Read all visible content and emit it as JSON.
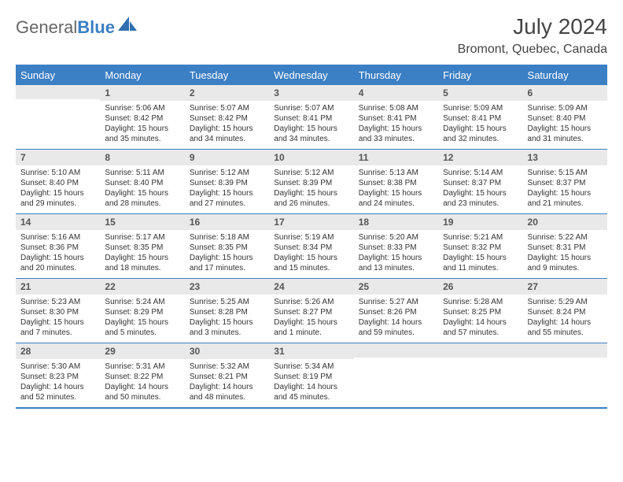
{
  "brand": {
    "first": "General",
    "second": "Blue"
  },
  "title": "July 2024",
  "location": "Bromont, Quebec, Canada",
  "colors": {
    "accent": "#3b7fc4",
    "header_bg": "#3b7fc4",
    "header_fg": "#ffffff",
    "daynum_bg": "#e9e9e9",
    "text": "#333333",
    "brand_grey": "#666666"
  },
  "days_of_week": [
    "Sunday",
    "Monday",
    "Tuesday",
    "Wednesday",
    "Thursday",
    "Friday",
    "Saturday"
  ],
  "weeks": [
    [
      {
        "n": "",
        "sunrise": "",
        "sunset": "",
        "daylight": ""
      },
      {
        "n": "1",
        "sunrise": "Sunrise: 5:06 AM",
        "sunset": "Sunset: 8:42 PM",
        "daylight": "Daylight: 15 hours and 35 minutes."
      },
      {
        "n": "2",
        "sunrise": "Sunrise: 5:07 AM",
        "sunset": "Sunset: 8:42 PM",
        "daylight": "Daylight: 15 hours and 34 minutes."
      },
      {
        "n": "3",
        "sunrise": "Sunrise: 5:07 AM",
        "sunset": "Sunset: 8:41 PM",
        "daylight": "Daylight: 15 hours and 34 minutes."
      },
      {
        "n": "4",
        "sunrise": "Sunrise: 5:08 AM",
        "sunset": "Sunset: 8:41 PM",
        "daylight": "Daylight: 15 hours and 33 minutes."
      },
      {
        "n": "5",
        "sunrise": "Sunrise: 5:09 AM",
        "sunset": "Sunset: 8:41 PM",
        "daylight": "Daylight: 15 hours and 32 minutes."
      },
      {
        "n": "6",
        "sunrise": "Sunrise: 5:09 AM",
        "sunset": "Sunset: 8:40 PM",
        "daylight": "Daylight: 15 hours and 31 minutes."
      }
    ],
    [
      {
        "n": "7",
        "sunrise": "Sunrise: 5:10 AM",
        "sunset": "Sunset: 8:40 PM",
        "daylight": "Daylight: 15 hours and 29 minutes."
      },
      {
        "n": "8",
        "sunrise": "Sunrise: 5:11 AM",
        "sunset": "Sunset: 8:40 PM",
        "daylight": "Daylight: 15 hours and 28 minutes."
      },
      {
        "n": "9",
        "sunrise": "Sunrise: 5:12 AM",
        "sunset": "Sunset: 8:39 PM",
        "daylight": "Daylight: 15 hours and 27 minutes."
      },
      {
        "n": "10",
        "sunrise": "Sunrise: 5:12 AM",
        "sunset": "Sunset: 8:39 PM",
        "daylight": "Daylight: 15 hours and 26 minutes."
      },
      {
        "n": "11",
        "sunrise": "Sunrise: 5:13 AM",
        "sunset": "Sunset: 8:38 PM",
        "daylight": "Daylight: 15 hours and 24 minutes."
      },
      {
        "n": "12",
        "sunrise": "Sunrise: 5:14 AM",
        "sunset": "Sunset: 8:37 PM",
        "daylight": "Daylight: 15 hours and 23 minutes."
      },
      {
        "n": "13",
        "sunrise": "Sunrise: 5:15 AM",
        "sunset": "Sunset: 8:37 PM",
        "daylight": "Daylight: 15 hours and 21 minutes."
      }
    ],
    [
      {
        "n": "14",
        "sunrise": "Sunrise: 5:16 AM",
        "sunset": "Sunset: 8:36 PM",
        "daylight": "Daylight: 15 hours and 20 minutes."
      },
      {
        "n": "15",
        "sunrise": "Sunrise: 5:17 AM",
        "sunset": "Sunset: 8:35 PM",
        "daylight": "Daylight: 15 hours and 18 minutes."
      },
      {
        "n": "16",
        "sunrise": "Sunrise: 5:18 AM",
        "sunset": "Sunset: 8:35 PM",
        "daylight": "Daylight: 15 hours and 17 minutes."
      },
      {
        "n": "17",
        "sunrise": "Sunrise: 5:19 AM",
        "sunset": "Sunset: 8:34 PM",
        "daylight": "Daylight: 15 hours and 15 minutes."
      },
      {
        "n": "18",
        "sunrise": "Sunrise: 5:20 AM",
        "sunset": "Sunset: 8:33 PM",
        "daylight": "Daylight: 15 hours and 13 minutes."
      },
      {
        "n": "19",
        "sunrise": "Sunrise: 5:21 AM",
        "sunset": "Sunset: 8:32 PM",
        "daylight": "Daylight: 15 hours and 11 minutes."
      },
      {
        "n": "20",
        "sunrise": "Sunrise: 5:22 AM",
        "sunset": "Sunset: 8:31 PM",
        "daylight": "Daylight: 15 hours and 9 minutes."
      }
    ],
    [
      {
        "n": "21",
        "sunrise": "Sunrise: 5:23 AM",
        "sunset": "Sunset: 8:30 PM",
        "daylight": "Daylight: 15 hours and 7 minutes."
      },
      {
        "n": "22",
        "sunrise": "Sunrise: 5:24 AM",
        "sunset": "Sunset: 8:29 PM",
        "daylight": "Daylight: 15 hours and 5 minutes."
      },
      {
        "n": "23",
        "sunrise": "Sunrise: 5:25 AM",
        "sunset": "Sunset: 8:28 PM",
        "daylight": "Daylight: 15 hours and 3 minutes."
      },
      {
        "n": "24",
        "sunrise": "Sunrise: 5:26 AM",
        "sunset": "Sunset: 8:27 PM",
        "daylight": "Daylight: 15 hours and 1 minute."
      },
      {
        "n": "25",
        "sunrise": "Sunrise: 5:27 AM",
        "sunset": "Sunset: 8:26 PM",
        "daylight": "Daylight: 14 hours and 59 minutes."
      },
      {
        "n": "26",
        "sunrise": "Sunrise: 5:28 AM",
        "sunset": "Sunset: 8:25 PM",
        "daylight": "Daylight: 14 hours and 57 minutes."
      },
      {
        "n": "27",
        "sunrise": "Sunrise: 5:29 AM",
        "sunset": "Sunset: 8:24 PM",
        "daylight": "Daylight: 14 hours and 55 minutes."
      }
    ],
    [
      {
        "n": "28",
        "sunrise": "Sunrise: 5:30 AM",
        "sunset": "Sunset: 8:23 PM",
        "daylight": "Daylight: 14 hours and 52 minutes."
      },
      {
        "n": "29",
        "sunrise": "Sunrise: 5:31 AM",
        "sunset": "Sunset: 8:22 PM",
        "daylight": "Daylight: 14 hours and 50 minutes."
      },
      {
        "n": "30",
        "sunrise": "Sunrise: 5:32 AM",
        "sunset": "Sunset: 8:21 PM",
        "daylight": "Daylight: 14 hours and 48 minutes."
      },
      {
        "n": "31",
        "sunrise": "Sunrise: 5:34 AM",
        "sunset": "Sunset: 8:19 PM",
        "daylight": "Daylight: 14 hours and 45 minutes."
      },
      {
        "n": "",
        "sunrise": "",
        "sunset": "",
        "daylight": ""
      },
      {
        "n": "",
        "sunrise": "",
        "sunset": "",
        "daylight": ""
      },
      {
        "n": "",
        "sunrise": "",
        "sunset": "",
        "daylight": ""
      }
    ]
  ]
}
